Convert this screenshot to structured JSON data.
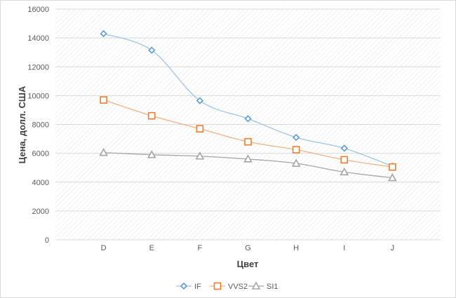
{
  "chart_data": {
    "type": "line",
    "categories": [
      "D",
      "E",
      "F",
      "G",
      "H",
      "I",
      "J"
    ],
    "xlabel": "Цвет",
    "ylabel": "Цена, долл. США",
    "ylim": [
      0,
      16000
    ],
    "yticks": [
      "0",
      "2000",
      "4000",
      "6000",
      "8000",
      "10000",
      "12000",
      "14000",
      "16000"
    ],
    "grid": true,
    "smoothed": true,
    "legend_position": "bottom",
    "series": [
      {
        "name": "IF",
        "marker": "diamond",
        "color": "#5b9bd5",
        "line_color": "#9dc3e6",
        "values": [
          14300,
          13150,
          9650,
          8400,
          7100,
          6350,
          5100
        ]
      },
      {
        "name": "VVS2",
        "marker": "square",
        "color": "#ed7d31",
        "line_color": "#f4b183",
        "values": [
          9700,
          8600,
          7700,
          6800,
          6250,
          5550,
          5050
        ]
      },
      {
        "name": "SI1",
        "marker": "triangle",
        "color": "#a5a5a5",
        "line_color": "#a5a5a5",
        "values": [
          6050,
          5900,
          5800,
          5600,
          5300,
          4700,
          4300
        ]
      }
    ]
  }
}
